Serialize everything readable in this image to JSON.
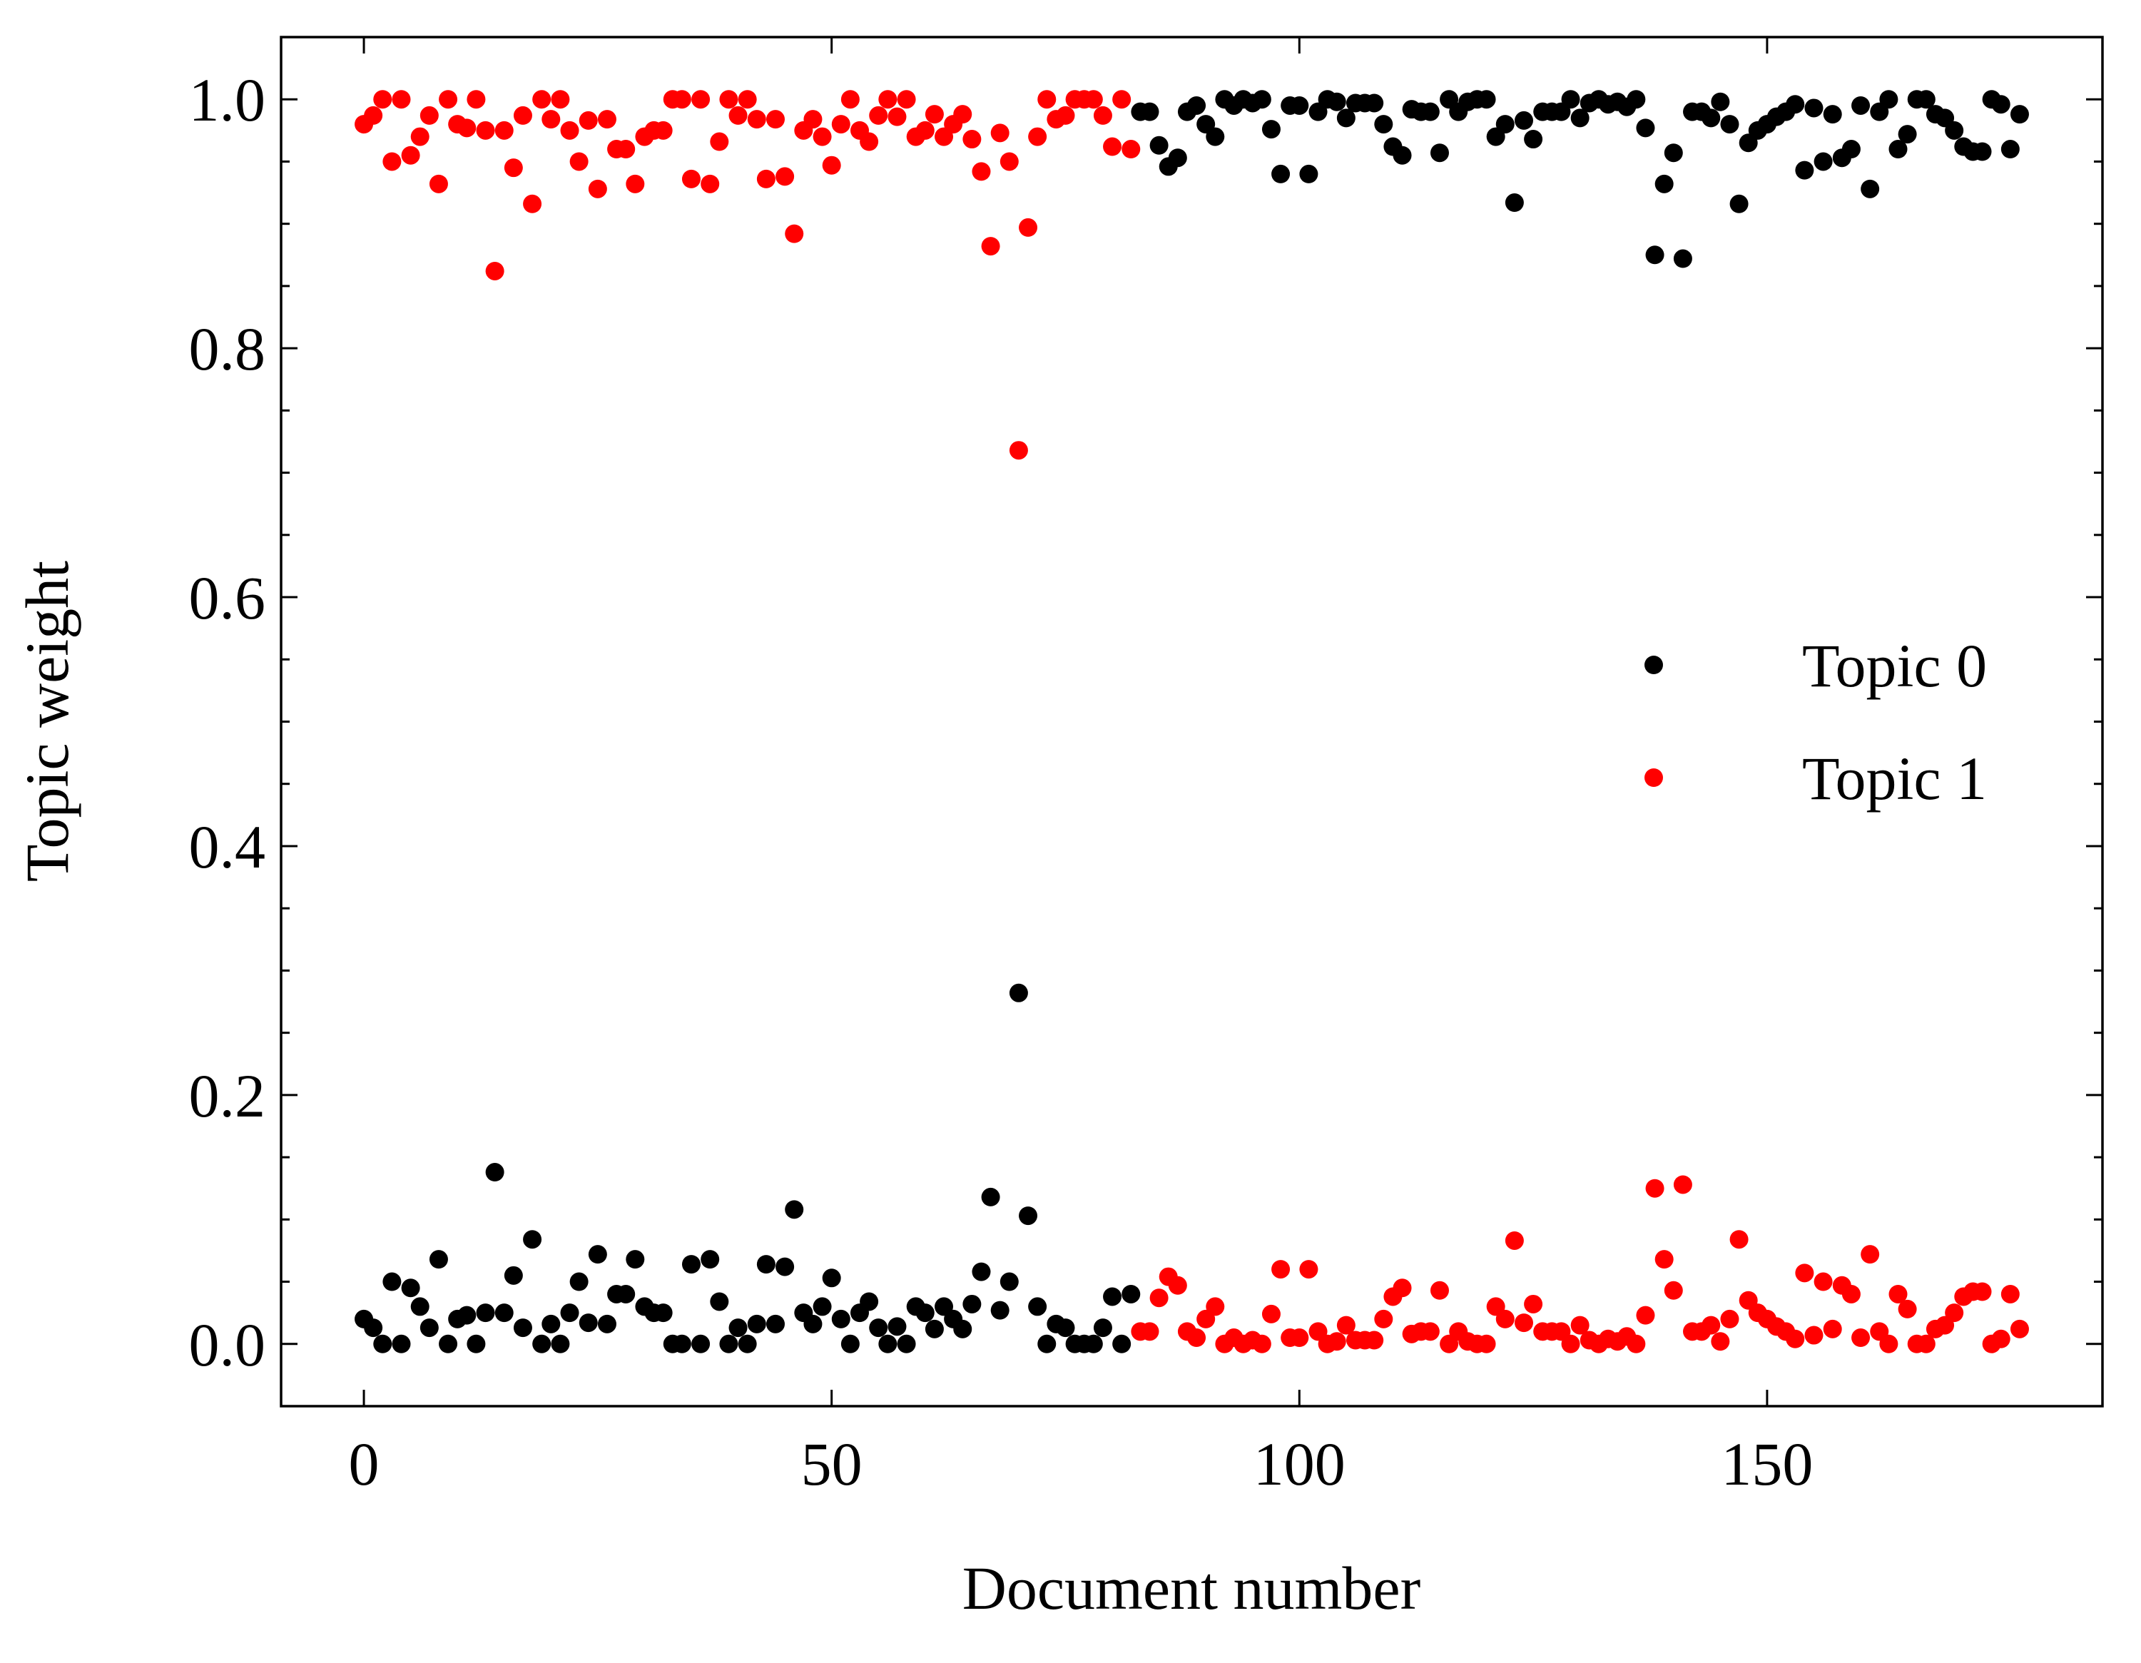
{
  "chart_data": {
    "type": "scatter",
    "x_label": "Document number",
    "y_label": "Topic weight",
    "x": [
      0,
      1,
      2,
      3,
      4,
      5,
      6,
      7,
      8,
      9,
      10,
      11,
      12,
      13,
      14,
      15,
      16,
      17,
      18,
      19,
      20,
      21,
      22,
      23,
      24,
      25,
      26,
      27,
      28,
      29,
      30,
      31,
      32,
      33,
      34,
      35,
      36,
      37,
      38,
      39,
      40,
      41,
      42,
      43,
      44,
      45,
      46,
      47,
      48,
      49,
      50,
      51,
      52,
      53,
      54,
      55,
      56,
      57,
      58,
      59,
      60,
      61,
      62,
      63,
      64,
      65,
      66,
      67,
      68,
      69,
      70,
      71,
      72,
      73,
      74,
      75,
      76,
      77,
      78,
      79,
      80,
      81,
      82,
      83,
      84,
      85,
      86,
      87,
      88,
      89,
      90,
      91,
      92,
      93,
      94,
      95,
      96,
      97,
      98,
      99,
      100,
      101,
      102,
      103,
      104,
      105,
      106,
      107,
      108,
      109,
      110,
      111,
      112,
      113,
      114,
      115,
      116,
      117,
      118,
      119,
      120,
      121,
      122,
      123,
      124,
      125,
      126,
      127,
      128,
      129,
      130,
      131,
      132,
      133,
      134,
      135,
      136,
      137,
      138,
      139,
      140,
      141,
      142,
      143,
      144,
      145,
      146,
      147,
      148,
      149,
      150,
      151,
      152,
      153,
      154,
      155,
      156,
      157,
      158,
      159,
      160,
      161,
      162,
      163,
      164,
      165,
      166,
      167,
      168,
      169,
      170,
      171,
      172,
      173,
      174,
      175,
      176,
      177
    ],
    "series": [
      {
        "name": "Topic 0",
        "color": "#000000",
        "values": [
          0.02,
          0.013,
          0.0,
          0.05,
          0.0,
          0.045,
          0.03,
          0.013,
          0.068,
          0.0,
          0.02,
          0.023,
          0.0,
          0.025,
          0.138,
          0.025,
          0.055,
          0.013,
          0.084,
          0.0,
          0.016,
          0.0,
          0.025,
          0.05,
          0.017,
          0.072,
          0.016,
          0.04,
          0.04,
          0.068,
          0.03,
          0.025,
          0.025,
          0.0,
          0.0,
          0.064,
          0.0,
          0.068,
          0.034,
          0.0,
          0.013,
          0.0,
          0.016,
          0.064,
          0.016,
          0.062,
          0.108,
          0.025,
          0.016,
          0.03,
          0.053,
          0.02,
          0.0,
          0.025,
          0.034,
          0.013,
          0.0,
          0.014,
          0.0,
          0.03,
          0.025,
          0.012,
          0.03,
          0.02,
          0.012,
          0.032,
          0.058,
          0.118,
          0.027,
          0.05,
          0.282,
          0.103,
          0.03,
          0.0,
          0.016,
          0.013,
          0.0,
          0.0,
          0.0,
          0.013,
          0.038,
          0.0,
          0.04,
          0.99,
          0.99,
          0.963,
          0.946,
          0.953,
          0.99,
          0.995,
          0.98,
          0.97,
          1.0,
          0.995,
          1.0,
          0.997,
          1.0,
          0.976,
          0.94,
          0.995,
          0.995,
          0.94,
          0.99,
          1.0,
          0.998,
          0.985,
          0.997,
          0.997,
          0.997,
          0.98,
          0.962,
          0.955,
          0.992,
          0.99,
          0.99,
          0.957,
          1.0,
          0.99,
          0.998,
          1.0,
          1.0,
          0.97,
          0.98,
          0.917,
          0.983,
          0.968,
          0.99,
          0.99,
          0.99,
          1.0,
          0.985,
          0.997,
          1.0,
          0.996,
          0.998,
          0.994,
          1.0,
          0.977,
          0.875,
          0.932,
          0.957,
          0.872,
          0.99,
          0.99,
          0.985,
          0.998,
          0.98,
          0.916,
          0.965,
          0.975,
          0.98,
          0.986,
          0.99,
          0.996,
          0.943,
          0.993,
          0.95,
          0.988,
          0.953,
          0.96,
          0.995,
          0.928,
          0.99,
          1.0,
          0.96,
          0.972,
          1.0,
          1.0,
          0.988,
          0.985,
          0.975,
          0.962,
          0.958,
          0.958,
          1.0,
          0.996,
          0.96,
          0.988
        ]
      },
      {
        "name": "Topic 1",
        "color": "#ff0000",
        "values": [
          0.98,
          0.987,
          1.0,
          0.95,
          1.0,
          0.955,
          0.97,
          0.987,
          0.932,
          1.0,
          0.98,
          0.977,
          1.0,
          0.975,
          0.862,
          0.975,
          0.945,
          0.987,
          0.916,
          1.0,
          0.984,
          1.0,
          0.975,
          0.95,
          0.983,
          0.928,
          0.984,
          0.96,
          0.96,
          0.932,
          0.97,
          0.975,
          0.975,
          1.0,
          1.0,
          0.936,
          1.0,
          0.932,
          0.966,
          1.0,
          0.987,
          1.0,
          0.984,
          0.936,
          0.984,
          0.938,
          0.892,
          0.975,
          0.984,
          0.97,
          0.947,
          0.98,
          1.0,
          0.975,
          0.966,
          0.987,
          1.0,
          0.986,
          1.0,
          0.97,
          0.975,
          0.988,
          0.97,
          0.98,
          0.988,
          0.968,
          0.942,
          0.882,
          0.973,
          0.95,
          0.718,
          0.897,
          0.97,
          1.0,
          0.984,
          0.987,
          1.0,
          1.0,
          1.0,
          0.987,
          0.962,
          1.0,
          0.96,
          0.01,
          0.01,
          0.037,
          0.054,
          0.047,
          0.01,
          0.005,
          0.02,
          0.03,
          0.0,
          0.005,
          0.0,
          0.003,
          0.0,
          0.024,
          0.06,
          0.005,
          0.005,
          0.06,
          0.01,
          0.0,
          0.002,
          0.015,
          0.003,
          0.003,
          0.003,
          0.02,
          0.038,
          0.045,
          0.008,
          0.01,
          0.01,
          0.043,
          0.0,
          0.01,
          0.002,
          0.0,
          0.0,
          0.03,
          0.02,
          0.083,
          0.017,
          0.032,
          0.01,
          0.01,
          0.01,
          0.0,
          0.015,
          0.003,
          0.0,
          0.004,
          0.002,
          0.006,
          0.0,
          0.023,
          0.125,
          0.068,
          0.043,
          0.128,
          0.01,
          0.01,
          0.015,
          0.002,
          0.02,
          0.084,
          0.035,
          0.025,
          0.02,
          0.014,
          0.01,
          0.004,
          0.057,
          0.007,
          0.05,
          0.012,
          0.047,
          0.04,
          0.005,
          0.072,
          0.01,
          0.0,
          0.04,
          0.028,
          0.0,
          0.0,
          0.012,
          0.015,
          0.025,
          0.038,
          0.042,
          0.042,
          0.0,
          0.004,
          0.04,
          0.012
        ]
      }
    ],
    "xlim": [
      -8.85,
      185.85
    ],
    "ylim": [
      -0.05,
      1.05
    ],
    "xticks": [
      0,
      50,
      100,
      150
    ],
    "yticks": [
      {
        "value": 0,
        "label": "0.0"
      },
      {
        "value": 0.2,
        "label": "0.2"
      },
      {
        "value": 0.4,
        "label": "0.4"
      },
      {
        "value": 0.6,
        "label": "0.6"
      },
      {
        "value": 0.8,
        "label": "0.8"
      },
      {
        "value": 1,
        "label": "1.0"
      }
    ],
    "yminorticks": [
      0.05,
      0.1,
      0.15,
      0.25,
      0.3,
      0.35,
      0.45,
      0.5,
      0.55,
      0.65,
      0.7,
      0.75,
      0.85,
      0.9,
      0.95
    ],
    "legend": "center right",
    "grid": false
  }
}
